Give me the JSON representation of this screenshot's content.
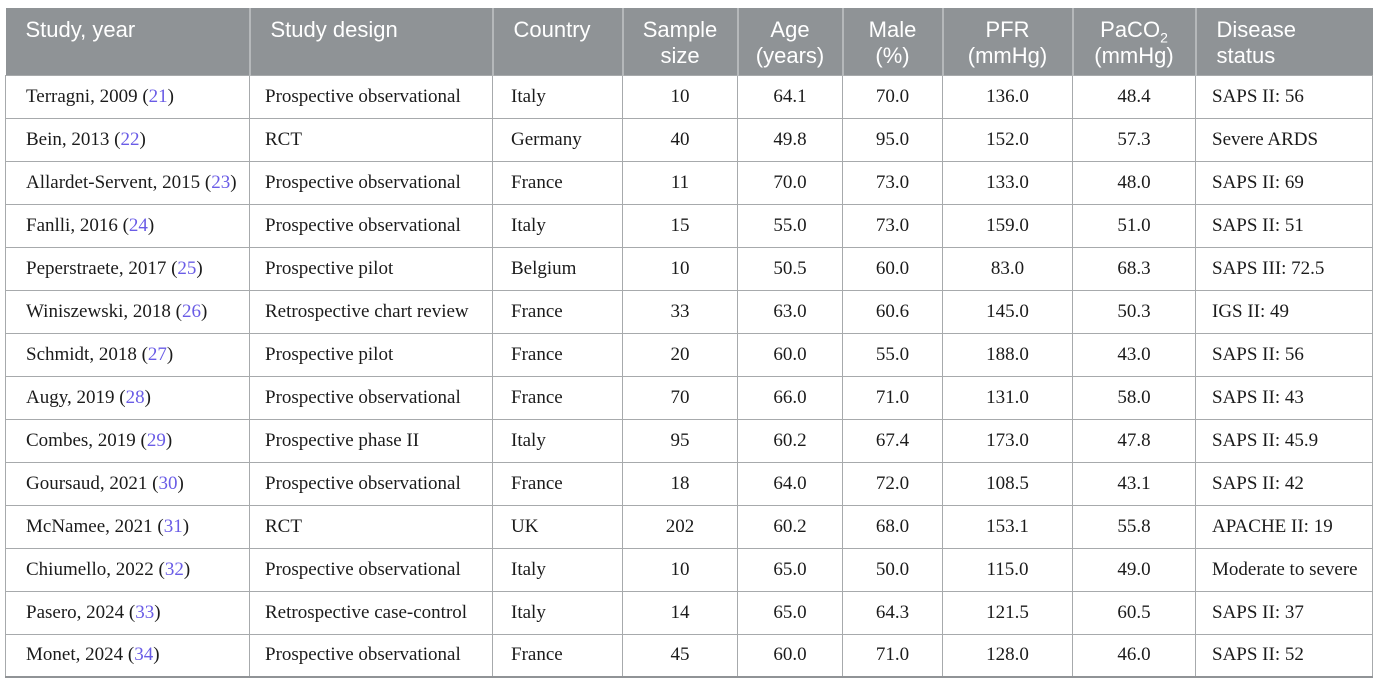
{
  "colors": {
    "header_bg": "#8f9396",
    "header_text": "#ffffff",
    "header_divider": "#b5b8ba",
    "row_border": "#a7aaac",
    "body_text": "#1b1b1b",
    "citation_link": "#6a5ce6",
    "background": "#ffffff"
  },
  "table": {
    "columns": [
      {
        "id": "study_year",
        "label1": "Study, year",
        "label2": "",
        "align": "left"
      },
      {
        "id": "study_design",
        "label1": "Study design",
        "label2": "",
        "align": "left"
      },
      {
        "id": "country",
        "label1": "Country",
        "label2": "",
        "align": "left"
      },
      {
        "id": "sample_size",
        "label1": "Sample",
        "label2": "size",
        "align": "center"
      },
      {
        "id": "age",
        "label1": "Age",
        "label2": "(years)",
        "align": "center"
      },
      {
        "id": "male",
        "label1": "Male",
        "label2": "(%)",
        "align": "center"
      },
      {
        "id": "pfr",
        "label1": "PFR",
        "label2": "(mmHg)",
        "align": "center"
      },
      {
        "id": "paco2",
        "label1": "PaCO",
        "label1_sub": "2",
        "label2": "(mmHg)",
        "align": "center"
      },
      {
        "id": "disease_status",
        "label1": "Disease",
        "label2": "status",
        "align": "left"
      }
    ],
    "rows": [
      {
        "study": "Terragni, 2009",
        "ref": "21",
        "design": "Prospective observational",
        "country": "Italy",
        "n": "10",
        "age": "64.1",
        "male": "70.0",
        "pfr": "136.0",
        "paco2": "48.4",
        "disease": "SAPS II: 56"
      },
      {
        "study": "Bein, 2013",
        "ref": "22",
        "design": "RCT",
        "country": "Germany",
        "n": "40",
        "age": "49.8",
        "male": "95.0",
        "pfr": "152.0",
        "paco2": "57.3",
        "disease": "Severe ARDS"
      },
      {
        "study": "Allardet-Servent, 2015",
        "ref": "23",
        "design": "Prospective observational",
        "country": "France",
        "n": "11",
        "age": "70.0",
        "male": "73.0",
        "pfr": "133.0",
        "paco2": "48.0",
        "disease": "SAPS II: 69"
      },
      {
        "study": "Fanlli, 2016",
        "ref": "24",
        "design": "Prospective observational",
        "country": "Italy",
        "n": "15",
        "age": "55.0",
        "male": "73.0",
        "pfr": "159.0",
        "paco2": "51.0",
        "disease": "SAPS II: 51"
      },
      {
        "study": "Peperstraete, 2017",
        "ref": "25",
        "design": "Prospective pilot",
        "country": "Belgium",
        "n": "10",
        "age": "50.5",
        "male": "60.0",
        "pfr": "83.0",
        "paco2": "68.3",
        "disease": "SAPS III: 72.5"
      },
      {
        "study": "Winiszewski, 2018",
        "ref": "26",
        "design": "Retrospective chart review",
        "country": "France",
        "n": "33",
        "age": "63.0",
        "male": "60.6",
        "pfr": "145.0",
        "paco2": "50.3",
        "disease": "IGS II: 49"
      },
      {
        "study": "Schmidt, 2018",
        "ref": "27",
        "design": "Prospective pilot",
        "country": "France",
        "n": "20",
        "age": "60.0",
        "male": "55.0",
        "pfr": "188.0",
        "paco2": "43.0",
        "disease": "SAPS II: 56"
      },
      {
        "study": "Augy, 2019",
        "ref": "28",
        "design": "Prospective observational",
        "country": "France",
        "n": "70",
        "age": "66.0",
        "male": "71.0",
        "pfr": "131.0",
        "paco2": "58.0",
        "disease": "SAPS II: 43"
      },
      {
        "study": "Combes, 2019",
        "ref": "29",
        "design": "Prospective phase II",
        "country": "Italy",
        "n": "95",
        "age": "60.2",
        "male": "67.4",
        "pfr": "173.0",
        "paco2": "47.8",
        "disease": "SAPS II: 45.9"
      },
      {
        "study": "Goursaud, 2021",
        "ref": "30",
        "design": "Prospective observational",
        "country": "France",
        "n": "18",
        "age": "64.0",
        "male": "72.0",
        "pfr": "108.5",
        "paco2": "43.1",
        "disease": "SAPS II: 42"
      },
      {
        "study": "McNamee, 2021",
        "ref": "31",
        "design": "RCT",
        "country": "UK",
        "n": "202",
        "age": "60.2",
        "male": "68.0",
        "pfr": "153.1",
        "paco2": "55.8",
        "disease": "APACHE II: 19"
      },
      {
        "study": "Chiumello, 2022",
        "ref": "32",
        "design": "Prospective observational",
        "country": "Italy",
        "n": "10",
        "age": "65.0",
        "male": "50.0",
        "pfr": "115.0",
        "paco2": "49.0",
        "disease": "Moderate to severe"
      },
      {
        "study": "Pasero, 2024",
        "ref": "33",
        "design": "Retrospective case-control",
        "country": "Italy",
        "n": "14",
        "age": "65.0",
        "male": "64.3",
        "pfr": "121.5",
        "paco2": "60.5",
        "disease": "SAPS II: 37"
      },
      {
        "study": "Monet, 2024",
        "ref": "34",
        "design": "Prospective observational",
        "country": "France",
        "n": "45",
        "age": "60.0",
        "male": "71.0",
        "pfr": "128.0",
        "paco2": "46.0",
        "disease": "SAPS II: 52"
      }
    ]
  }
}
